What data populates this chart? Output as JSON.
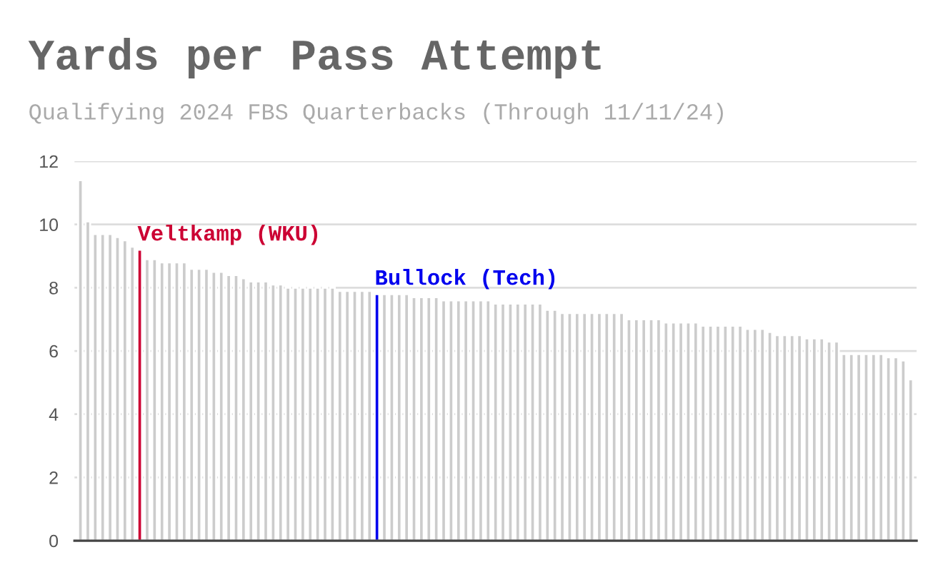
{
  "chart_data": {
    "type": "bar",
    "title": "Yards per Pass Attempt",
    "subtitle": "Qualifying 2024 FBS Quarterbacks (Through 11/11/24)",
    "categories": [
      null,
      null,
      null,
      null,
      null,
      null,
      null,
      null,
      null,
      null,
      null,
      null,
      null,
      null,
      null,
      null,
      null,
      null,
      null,
      null,
      null,
      null,
      null,
      null,
      null,
      null,
      null,
      null,
      null,
      null,
      null,
      null,
      null,
      null,
      null,
      null,
      null,
      null,
      null,
      null,
      null,
      null,
      null,
      null,
      null,
      null,
      null,
      null,
      null,
      null,
      null,
      null,
      null,
      null,
      null,
      null,
      null,
      null,
      null,
      null,
      null,
      null,
      null,
      null,
      null,
      null,
      null,
      null,
      null,
      null,
      null,
      null,
      null,
      null,
      null,
      null,
      null,
      null,
      null,
      null,
      null,
      null,
      null,
      null,
      null,
      null,
      null,
      null,
      null,
      null,
      null,
      null,
      null,
      null,
      null,
      null,
      null,
      null,
      null,
      null,
      null,
      null,
      null,
      null,
      null,
      null,
      null,
      null,
      null,
      null,
      null,
      null,
      null
    ],
    "values": [
      11.4,
      10.1,
      9.7,
      9.7,
      9.7,
      9.6,
      9.5,
      9.3,
      9.2,
      8.9,
      8.9,
      8.8,
      8.8,
      8.8,
      8.8,
      8.6,
      8.6,
      8.6,
      8.5,
      8.5,
      8.4,
      8.4,
      8.3,
      8.2,
      8.2,
      8.2,
      8.1,
      8.1,
      8.0,
      8.0,
      8.0,
      8.0,
      8.0,
      8.0,
      8.0,
      7.9,
      7.9,
      7.9,
      7.9,
      7.9,
      7.8,
      7.8,
      7.8,
      7.8,
      7.8,
      7.7,
      7.7,
      7.7,
      7.7,
      7.6,
      7.6,
      7.6,
      7.6,
      7.6,
      7.6,
      7.6,
      7.5,
      7.5,
      7.5,
      7.5,
      7.5,
      7.5,
      7.5,
      7.3,
      7.3,
      7.2,
      7.2,
      7.2,
      7.2,
      7.2,
      7.2,
      7.2,
      7.2,
      7.2,
      7.0,
      7.0,
      7.0,
      7.0,
      7.0,
      6.9,
      6.9,
      6.9,
      6.9,
      6.9,
      6.8,
      6.8,
      6.8,
      6.8,
      6.8,
      6.8,
      6.7,
      6.7,
      6.7,
      6.6,
      6.5,
      6.5,
      6.5,
      6.5,
      6.4,
      6.4,
      6.4,
      6.3,
      6.3,
      5.9,
      5.9,
      5.9,
      5.9,
      5.9,
      5.9,
      5.8,
      5.8,
      5.7,
      5.1
    ],
    "colors": [
      "#cccccc",
      "#cccccc",
      "#cccccc",
      "#cccccc",
      "#cccccc",
      "#cccccc",
      "#cccccc",
      "#cccccc",
      "#cc0033",
      "#cccccc",
      "#cccccc",
      "#cccccc",
      "#cccccc",
      "#cccccc",
      "#cccccc",
      "#cccccc",
      "#cccccc",
      "#cccccc",
      "#cccccc",
      "#cccccc",
      "#cccccc",
      "#cccccc",
      "#cccccc",
      "#cccccc",
      "#cccccc",
      "#cccccc",
      "#cccccc",
      "#cccccc",
      "#cccccc",
      "#cccccc",
      "#cccccc",
      "#cccccc",
      "#cccccc",
      "#cccccc",
      "#cccccc",
      "#cccccc",
      "#cccccc",
      "#cccccc",
      "#cccccc",
      "#cccccc",
      "#0000ee",
      "#cccccc",
      "#cccccc",
      "#cccccc",
      "#cccccc",
      "#cccccc",
      "#cccccc",
      "#cccccc",
      "#cccccc",
      "#cccccc",
      "#cccccc",
      "#cccccc",
      "#cccccc",
      "#cccccc",
      "#cccccc",
      "#cccccc",
      "#cccccc",
      "#cccccc",
      "#cccccc",
      "#cccccc",
      "#cccccc",
      "#cccccc",
      "#cccccc",
      "#cccccc",
      "#cccccc",
      "#cccccc",
      "#cccccc",
      "#cccccc",
      "#cccccc",
      "#cccccc",
      "#cccccc",
      "#cccccc",
      "#cccccc",
      "#cccccc",
      "#cccccc",
      "#cccccc",
      "#cccccc",
      "#cccccc",
      "#cccccc",
      "#cccccc",
      "#cccccc",
      "#cccccc",
      "#cccccc",
      "#cccccc",
      "#cccccc",
      "#cccccc",
      "#cccccc",
      "#cccccc",
      "#cccccc",
      "#cccccc",
      "#cccccc",
      "#cccccc",
      "#cccccc",
      "#cccccc",
      "#cccccc",
      "#cccccc",
      "#cccccc",
      "#cccccc",
      "#cccccc",
      "#cccccc",
      "#cccccc",
      "#cccccc",
      "#cccccc",
      "#cccccc",
      "#cccccc",
      "#cccccc",
      "#cccccc",
      "#cccccc",
      "#cccccc",
      "#cccccc",
      "#cccccc",
      "#cccccc",
      "#cccccc"
    ],
    "annotations": [
      "Veltkamp (WKU)",
      "Bullock (Tech)"
    ],
    "ylim": [
      0,
      12
    ],
    "yticks": [
      0,
      2,
      4,
      6,
      8,
      10,
      12
    ],
    "grid": "y",
    "legend": false
  }
}
